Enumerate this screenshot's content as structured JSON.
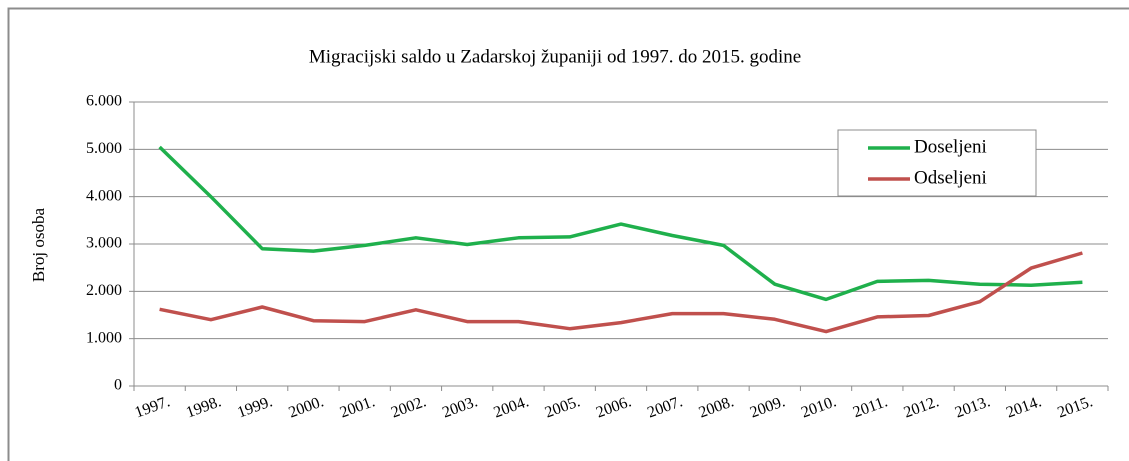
{
  "chart_data": {
    "type": "line",
    "title": "Migracijski  saldo u Zadarskoj županiji od 1997. do 2015.  godine",
    "ylabel": "Broj osoba",
    "categories": [
      "1997.",
      "1998.",
      "1999.",
      "2000.",
      "2001.",
      "2002.",
      "2003.",
      "2004.",
      "2005.",
      "2006.",
      "2007.",
      "2008.",
      "2009.",
      "2010.",
      "2011.",
      "2012.",
      "2013.",
      "2014.",
      "2015."
    ],
    "series": [
      {
        "name": "Doseljeni",
        "color": "#1fb04c",
        "values": [
          5050,
          4000,
          2900,
          2850,
          2970,
          3130,
          2990,
          3130,
          3150,
          3420,
          3180,
          2970,
          2150,
          1830,
          2210,
          2230,
          2150,
          2130,
          2190
        ]
      },
      {
        "name": "Odseljeni",
        "color": "#c0504d",
        "values": [
          1620,
          1400,
          1670,
          1380,
          1360,
          1610,
          1360,
          1360,
          1210,
          1340,
          1530,
          1530,
          1410,
          1150,
          1460,
          1490,
          1780,
          2490,
          2810
        ]
      }
    ],
    "ylim": [
      0,
      6000
    ],
    "yticks": [
      0,
      {
        "value": 1000,
        "label": "1.000"
      },
      {
        "value": 2000,
        "label": "2.000"
      },
      {
        "value": 3000,
        "label": "3.000"
      },
      {
        "value": 4000,
        "label": "4.000"
      },
      {
        "value": 5000,
        "label": "5.000"
      },
      {
        "value": 6000,
        "label": "6.000"
      }
    ],
    "grid": true,
    "legend": "upper right"
  }
}
